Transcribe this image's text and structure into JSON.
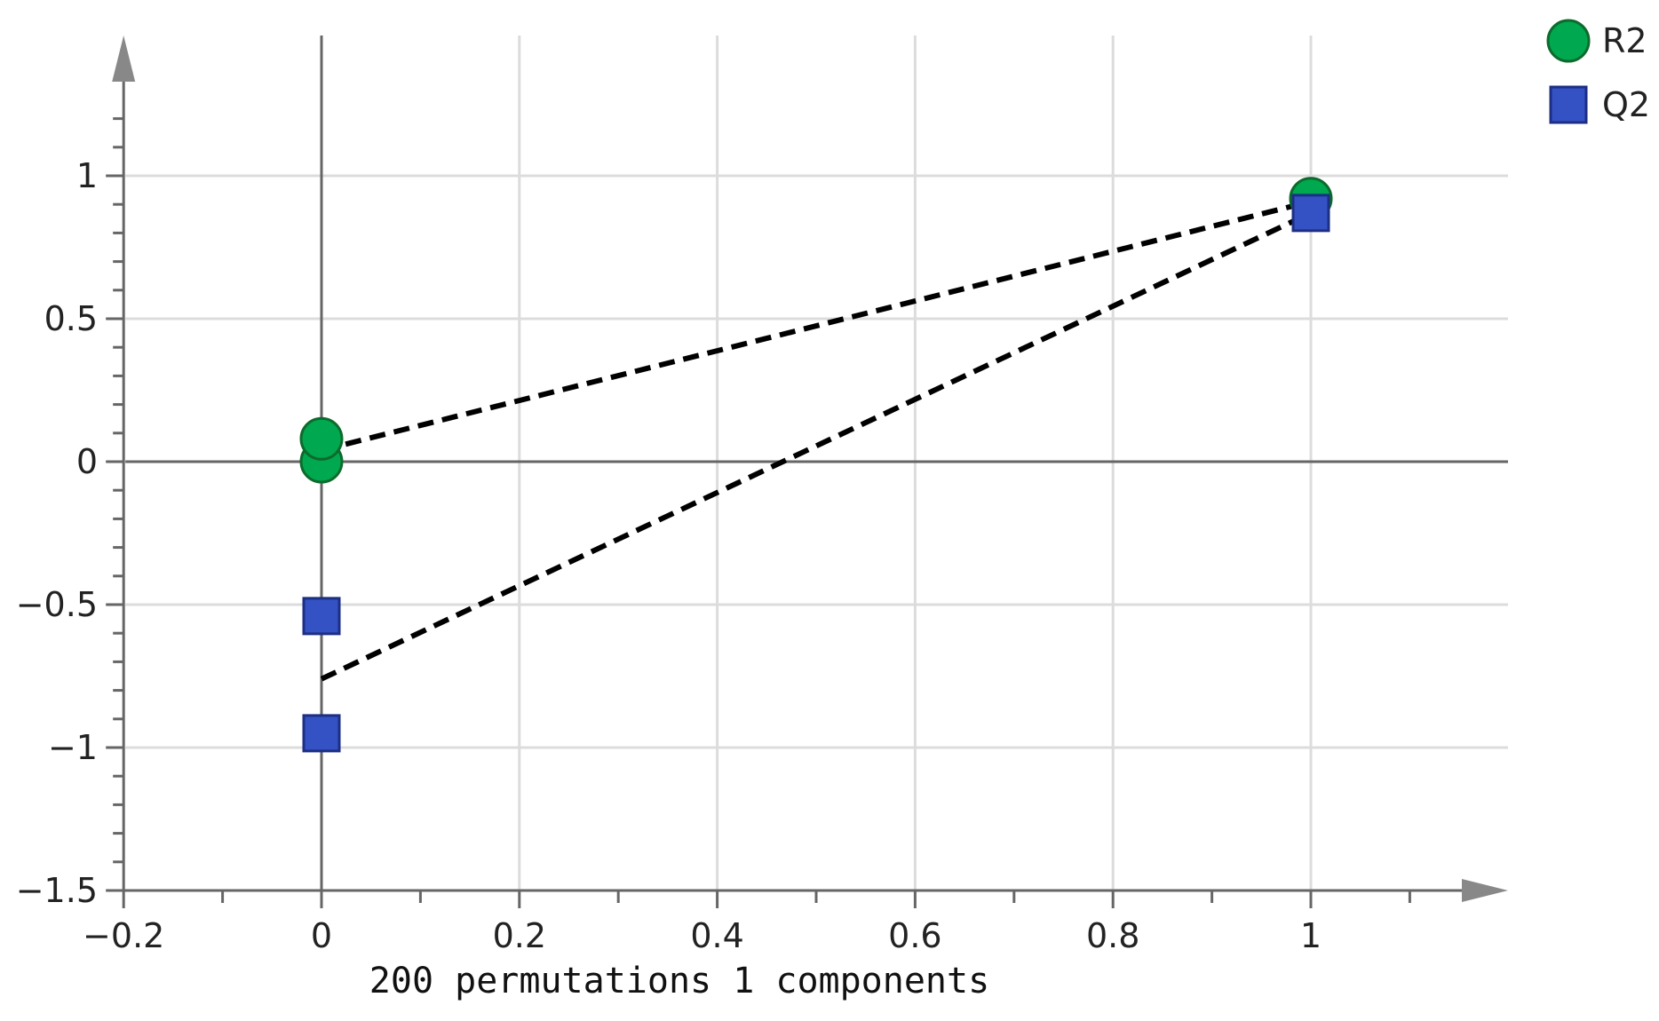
{
  "chart_data": {
    "type": "scatter",
    "title": "",
    "xlabel": "200 permutations 1 components",
    "ylabel": "",
    "xlim": [
      -0.2,
      1.2
    ],
    "ylim": [
      -1.5,
      1.5
    ],
    "grid": true,
    "legend_position": "top-right",
    "x_ticks": [
      -0.2,
      0,
      0.2,
      0.4,
      0.6,
      0.8,
      1
    ],
    "x_tick_labels": [
      "−0.2",
      "0",
      "0.2",
      "0.4",
      "0.6",
      "0.8",
      "1"
    ],
    "y_ticks": [
      1,
      0.5,
      0,
      -0.5,
      -1,
      -1.5
    ],
    "y_tick_labels": [
      "1",
      "0.5",
      "0",
      "−0.5",
      "−1",
      "−1.5"
    ],
    "series": [
      {
        "name": "R2",
        "marker": "circle",
        "color": "#00a84f",
        "edge_color": "#0c6b2c",
        "points": [
          [
            0,
            0.0
          ],
          [
            0,
            0.08
          ],
          [
            1,
            0.92
          ]
        ],
        "fit_line": [
          [
            0,
            0.04
          ],
          [
            1,
            0.91
          ]
        ]
      },
      {
        "name": "Q2",
        "marker": "square",
        "color": "#3452c4",
        "edge_color": "#1d2f84",
        "points": [
          [
            0,
            -0.54
          ],
          [
            0,
            -0.95
          ],
          [
            1,
            0.87
          ]
        ],
        "fit_line": [
          [
            0,
            -0.76
          ],
          [
            1,
            0.87
          ]
        ]
      }
    ],
    "axis_color": "#666666",
    "grid_color": "#dcdcdc",
    "fit_line_color": "#000000"
  }
}
